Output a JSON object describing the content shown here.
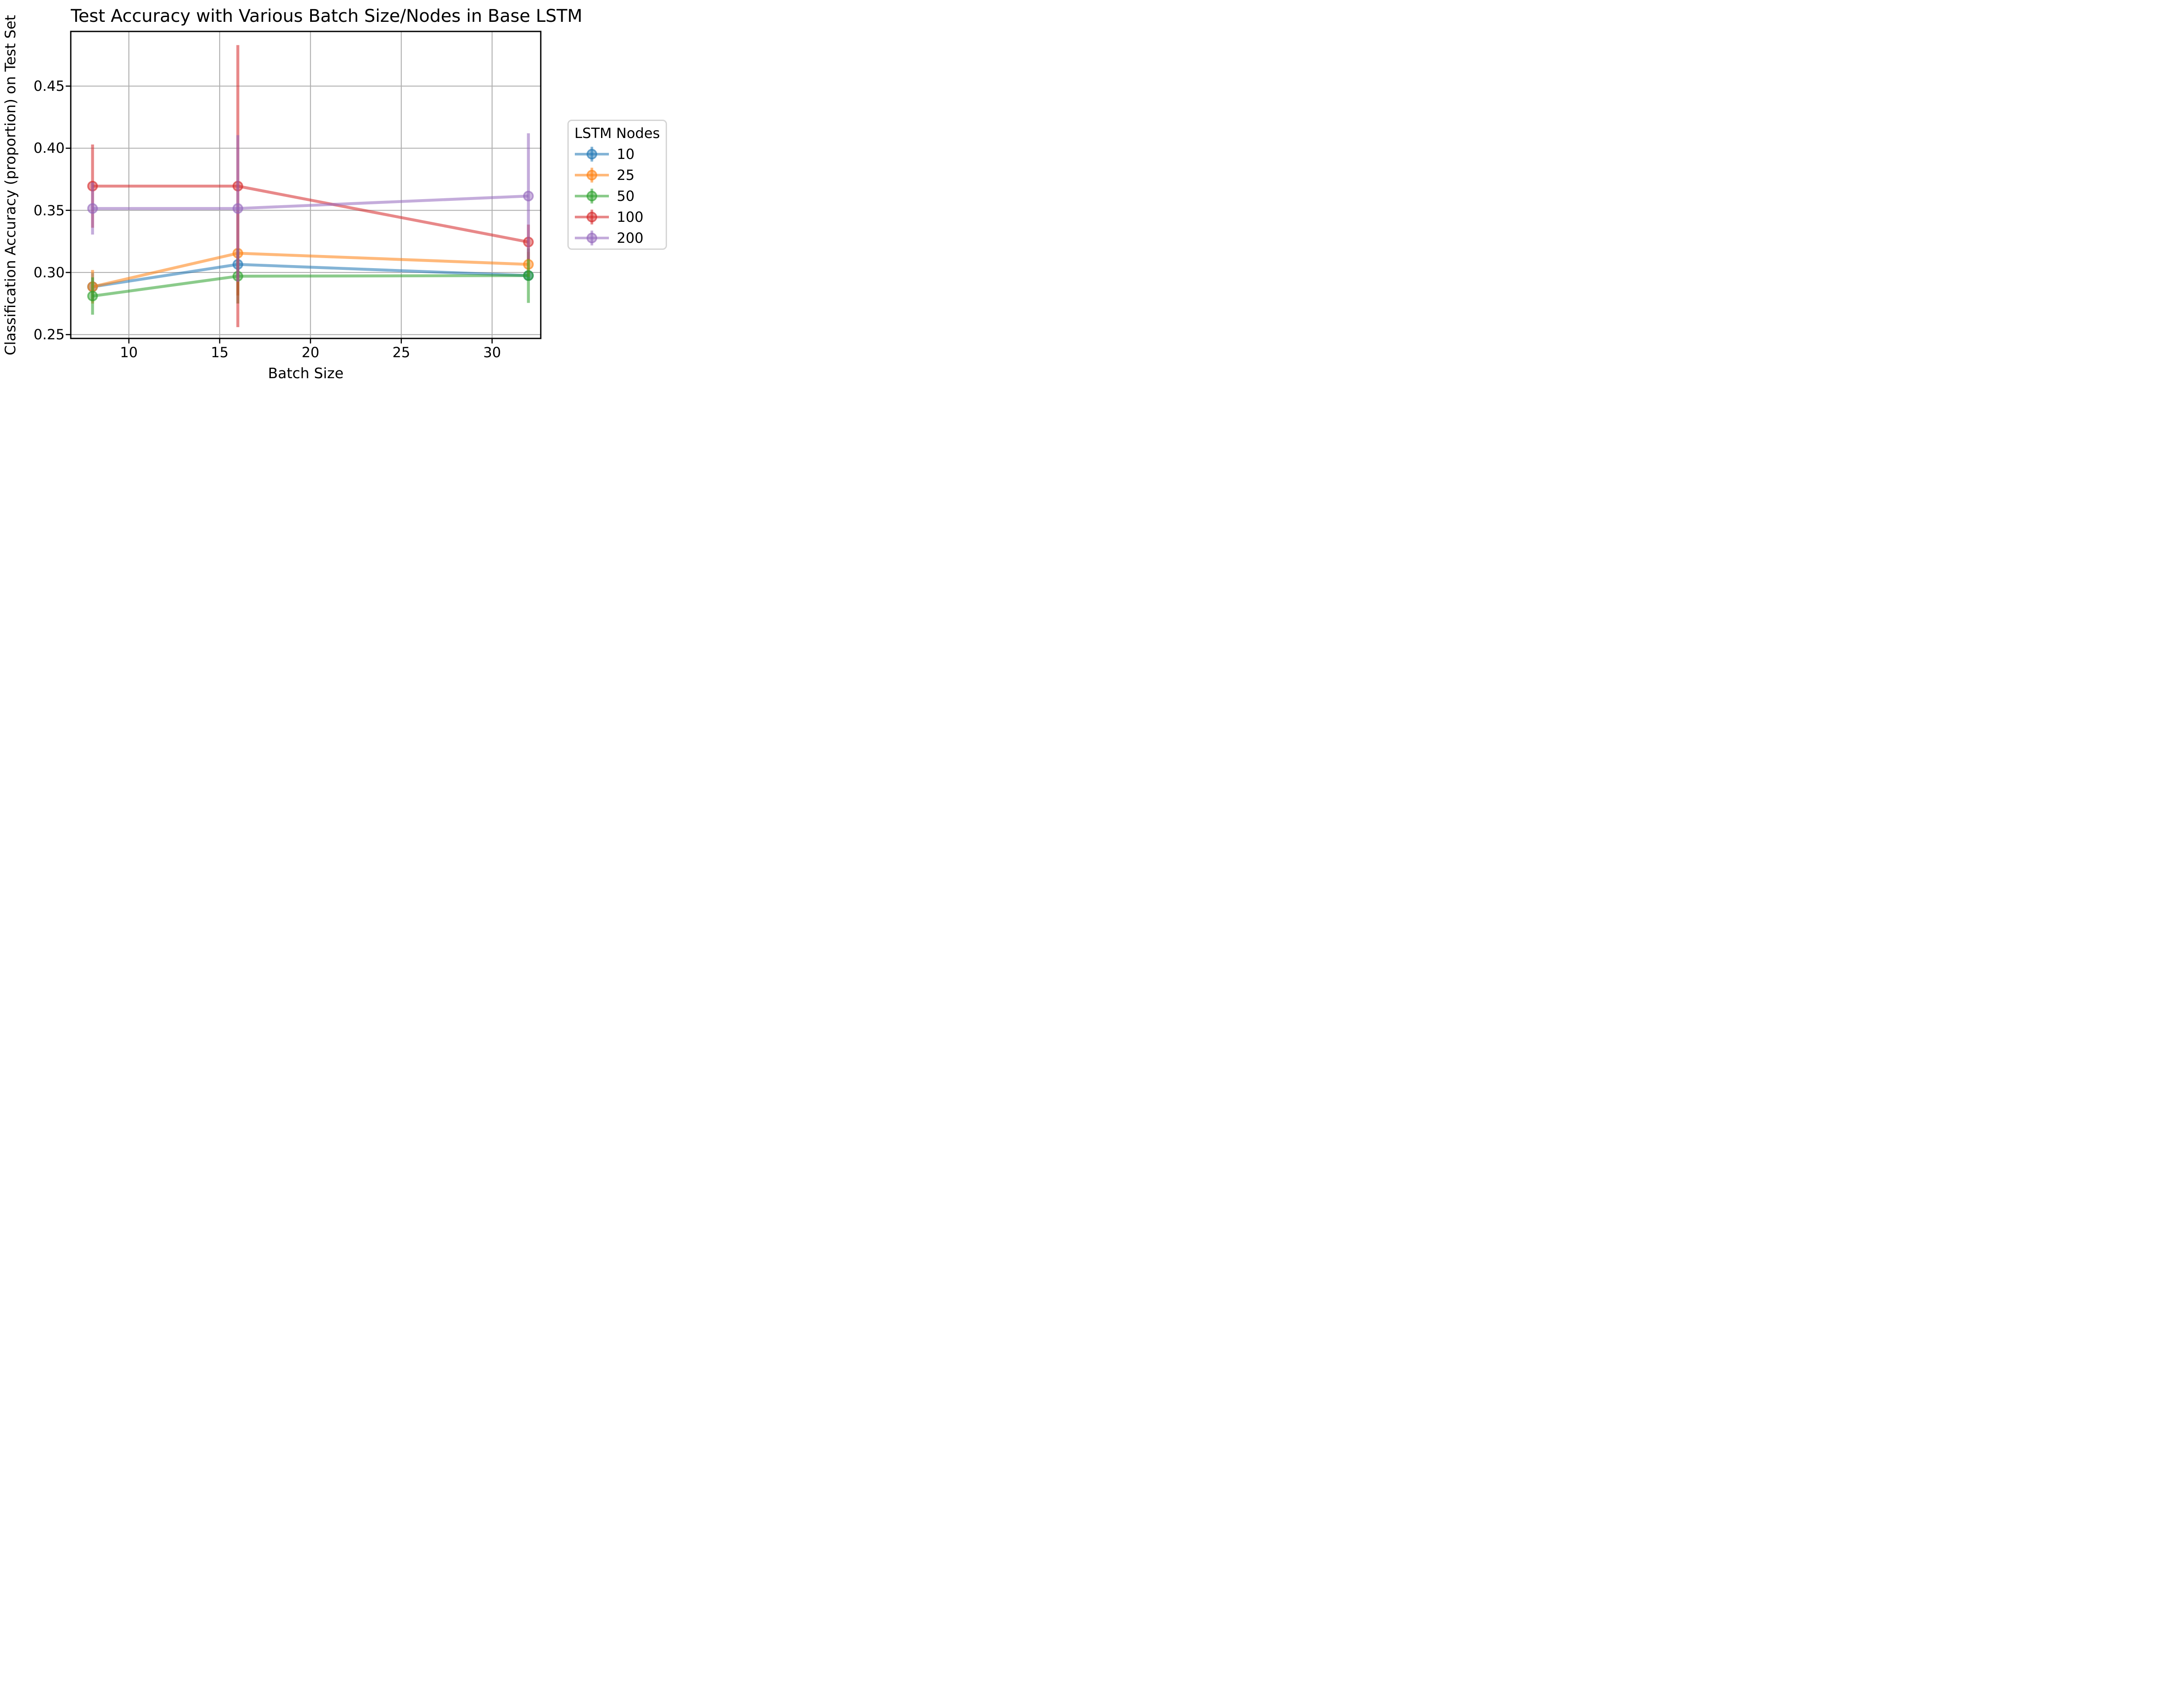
{
  "figure": {
    "title": "Test Accuracy with Various Batch Size/Nodes in Base LSTM",
    "xlabel": "Batch Size",
    "ylabel": "Classification Accuracy (proportion) on Test Set"
  },
  "legend": {
    "title": "LSTM Nodes",
    "entries": [
      {
        "label": "10",
        "color": "#1f77b4"
      },
      {
        "label": "25",
        "color": "#ff7f0e"
      },
      {
        "label": "50",
        "color": "#2ca02c"
      },
      {
        "label": "100",
        "color": "#d62728"
      },
      {
        "label": "200",
        "color": "#9467bd"
      }
    ]
  },
  "chart_data": {
    "type": "line",
    "title": "Test Accuracy with Various Batch Size/Nodes in Base LSTM",
    "xlabel": "Batch Size",
    "ylabel": "Classification Accuracy (proportion) on Test Set",
    "x": [
      8,
      16,
      32
    ],
    "xticks": [
      10,
      15,
      20,
      25,
      30
    ],
    "yticks": [
      0.25,
      0.3,
      0.35,
      0.4,
      0.45
    ],
    "xlim": [
      6.8,
      32.68
    ],
    "ylim": [
      0.2469,
      0.494
    ],
    "grid": true,
    "legend_title": "LSTM Nodes",
    "legend_position": "outside-right",
    "marker": "circle-with-errorbar",
    "series": [
      {
        "name": "10",
        "color": "#1f77b4",
        "values": [
          0.2885,
          0.3065,
          0.2975
        ],
        "yerr": [
          0.011,
          0.01,
          0.004
        ]
      },
      {
        "name": "25",
        "color": "#ff7f0e",
        "values": [
          0.2885,
          0.3155,
          0.3065
        ],
        "yerr": [
          0.0135,
          0.034,
          0.01
        ]
      },
      {
        "name": "50",
        "color": "#2ca02c",
        "values": [
          0.281,
          0.297,
          0.2975
        ],
        "yerr": [
          0.015,
          0.022,
          0.022
        ]
      },
      {
        "name": "100",
        "color": "#d62728",
        "values": [
          0.3695,
          0.3695,
          0.3245
        ],
        "yerr": [
          0.0335,
          0.1135,
          0.014
        ]
      },
      {
        "name": "200",
        "color": "#9467bd",
        "values": [
          0.3515,
          0.3515,
          0.3615
        ],
        "yerr": [
          0.021,
          0.059,
          0.0505
        ]
      }
    ],
    "style": {
      "alpha": 0.55,
      "marker_fill_alpha": 0.48,
      "marker_edge_alpha": 0.6,
      "line_width": 6.7,
      "marker_radius": 10.5,
      "grid_color": "#b0b0b0",
      "frame_color": "#000000"
    }
  }
}
